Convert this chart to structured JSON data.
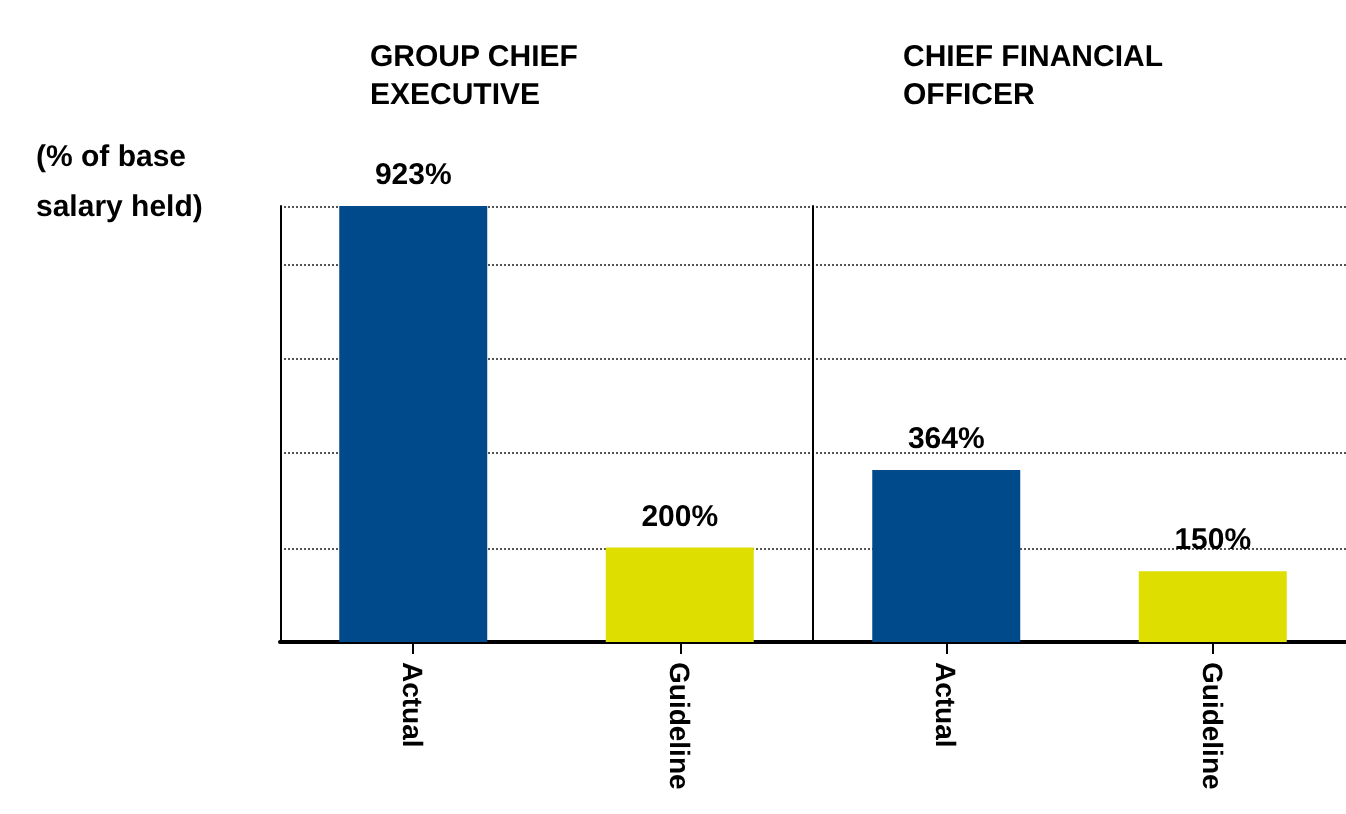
{
  "chart_data": {
    "type": "bar",
    "annotations": [
      "GROUP CHIEF EXECUTIVE",
      "CHIEF FINANCIAL OFFICER"
    ],
    "ylabel": "(% of base salary held)",
    "categories": [
      "Actual",
      "Guideline",
      "Actual",
      "Guideline"
    ],
    "values": [
      923,
      200,
      364,
      150
    ],
    "value_labels": [
      "923%",
      "200%",
      "364%",
      "150%"
    ],
    "colors": [
      "#004a8c",
      "#dede00",
      "#004a8c",
      "#dede00"
    ],
    "grid": "y",
    "tick_labels": "x"
  }
}
